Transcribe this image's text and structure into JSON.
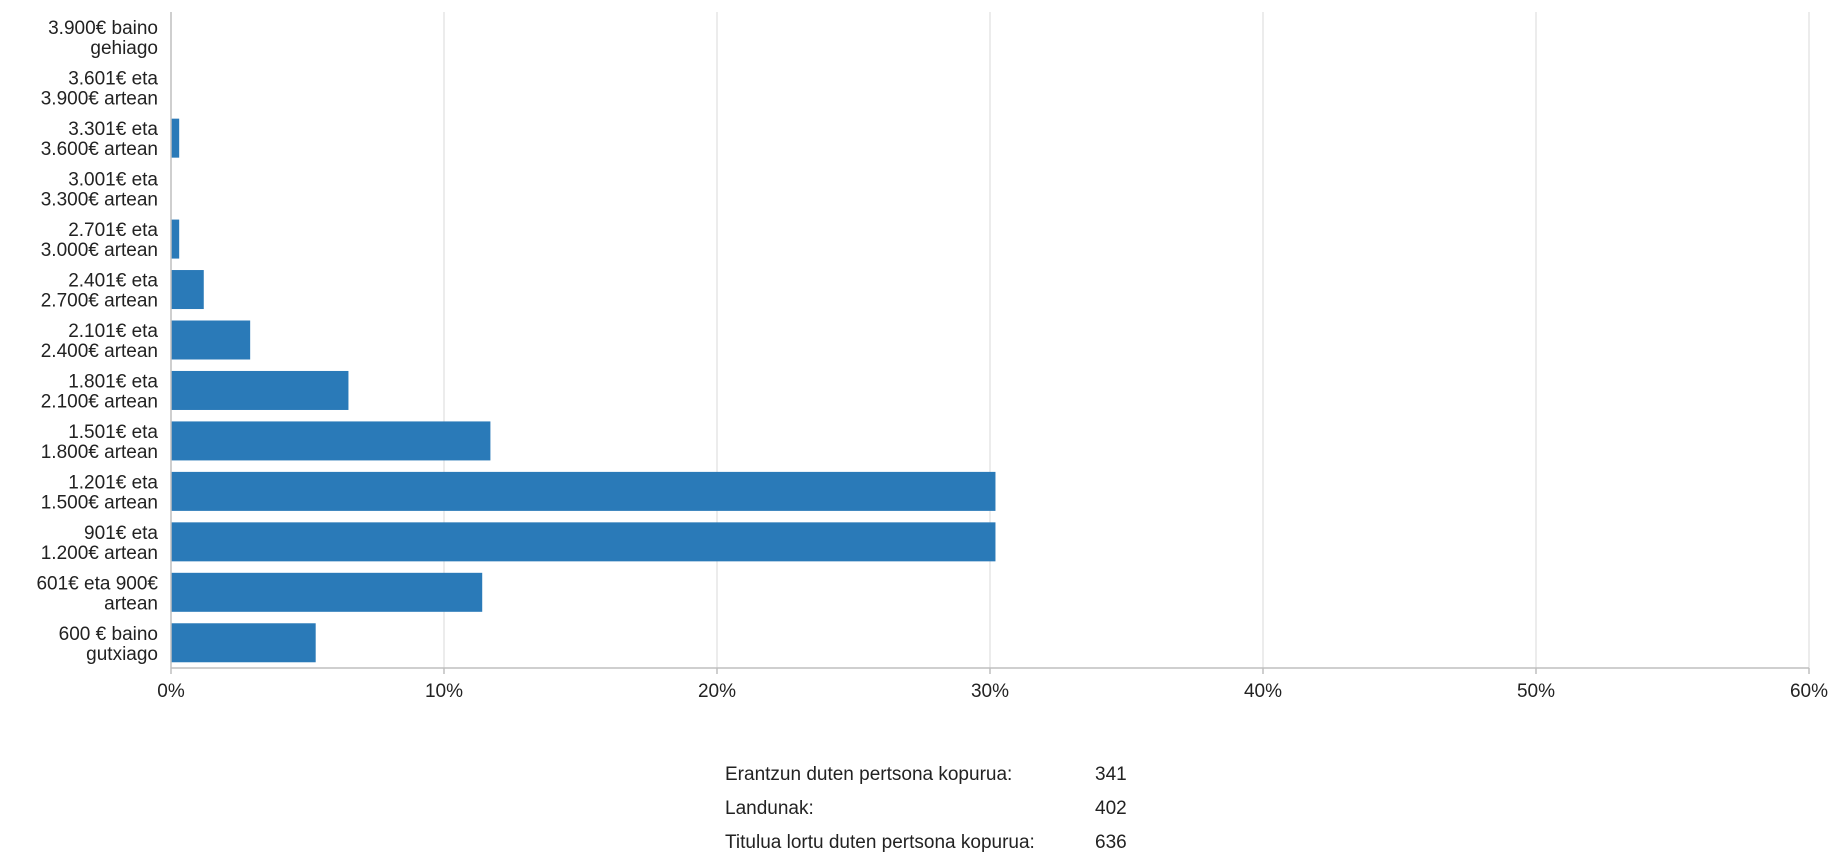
{
  "chart_data": {
    "type": "bar",
    "orientation": "horizontal",
    "categories": [
      [
        "3.900€ baino",
        "gehiago"
      ],
      [
        "3.601€ eta",
        "3.900€ artean"
      ],
      [
        "3.301€ eta",
        "3.600€ artean"
      ],
      [
        "3.001€ eta",
        "3.300€ artean"
      ],
      [
        "2.701€ eta",
        "3.000€ artean"
      ],
      [
        "2.401€ eta",
        "2.700€ artean"
      ],
      [
        "2.101€ eta",
        "2.400€ artean"
      ],
      [
        "1.801€ eta",
        "2.100€ artean"
      ],
      [
        "1.501€ eta",
        "1.800€ artean"
      ],
      [
        "1.201€ eta",
        "1.500€ artean"
      ],
      [
        "901€ eta",
        "1.200€ artean"
      ],
      [
        "601€ eta 900€",
        "artean"
      ],
      [
        "600 € baino",
        "gutxiago"
      ]
    ],
    "values": [
      0,
      0,
      0.3,
      0,
      0.3,
      1.2,
      2.9,
      6.5,
      11.7,
      30.2,
      30.2,
      11.4,
      5.3
    ],
    "xlim": [
      0,
      60
    ],
    "xticks": [
      0,
      10,
      20,
      30,
      40,
      50,
      60
    ],
    "xtick_suffix": "%",
    "title": "",
    "xlabel": "",
    "ylabel": "",
    "grid": "vertical",
    "bar_color": "#2a7ab8",
    "grid_color": "#d9d9d9",
    "axis_color": "#bfbfbf"
  },
  "stats": [
    {
      "label": "Erantzun duten pertsona kopurua:",
      "value": "341"
    },
    {
      "label": "Landunak:",
      "value": "402"
    },
    {
      "label": "Titulua lortu duten pertsona kopurua:",
      "value": "636"
    }
  ]
}
